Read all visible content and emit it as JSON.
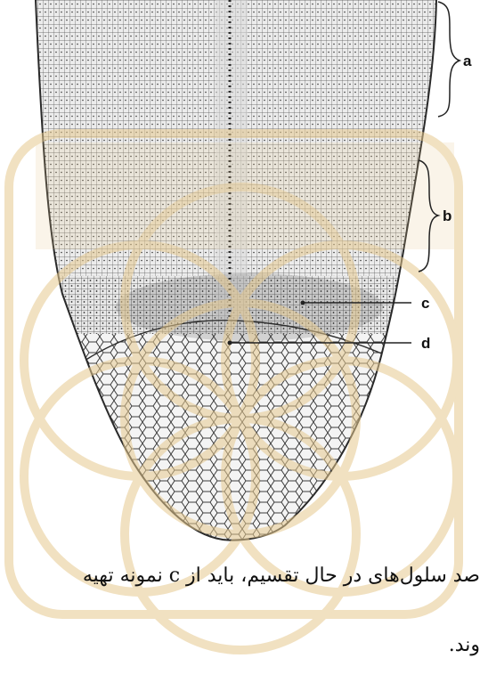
{
  "figure": {
    "subject": "root tip longitudinal section micrograph",
    "labels": [
      "a",
      "b",
      "c",
      "d"
    ],
    "colors": {
      "watermark": "#e6c98f",
      "tissue_dark": "#3a3a3a",
      "tissue_light": "#8a8a8a",
      "background": "#ffffff"
    },
    "watermark_icon": "seed-of-life-watermark"
  },
  "caption": {
    "line1": "صد سلول‌های در حال تقسیم، باید از c نمونه تهیه",
    "line2": "وند."
  }
}
